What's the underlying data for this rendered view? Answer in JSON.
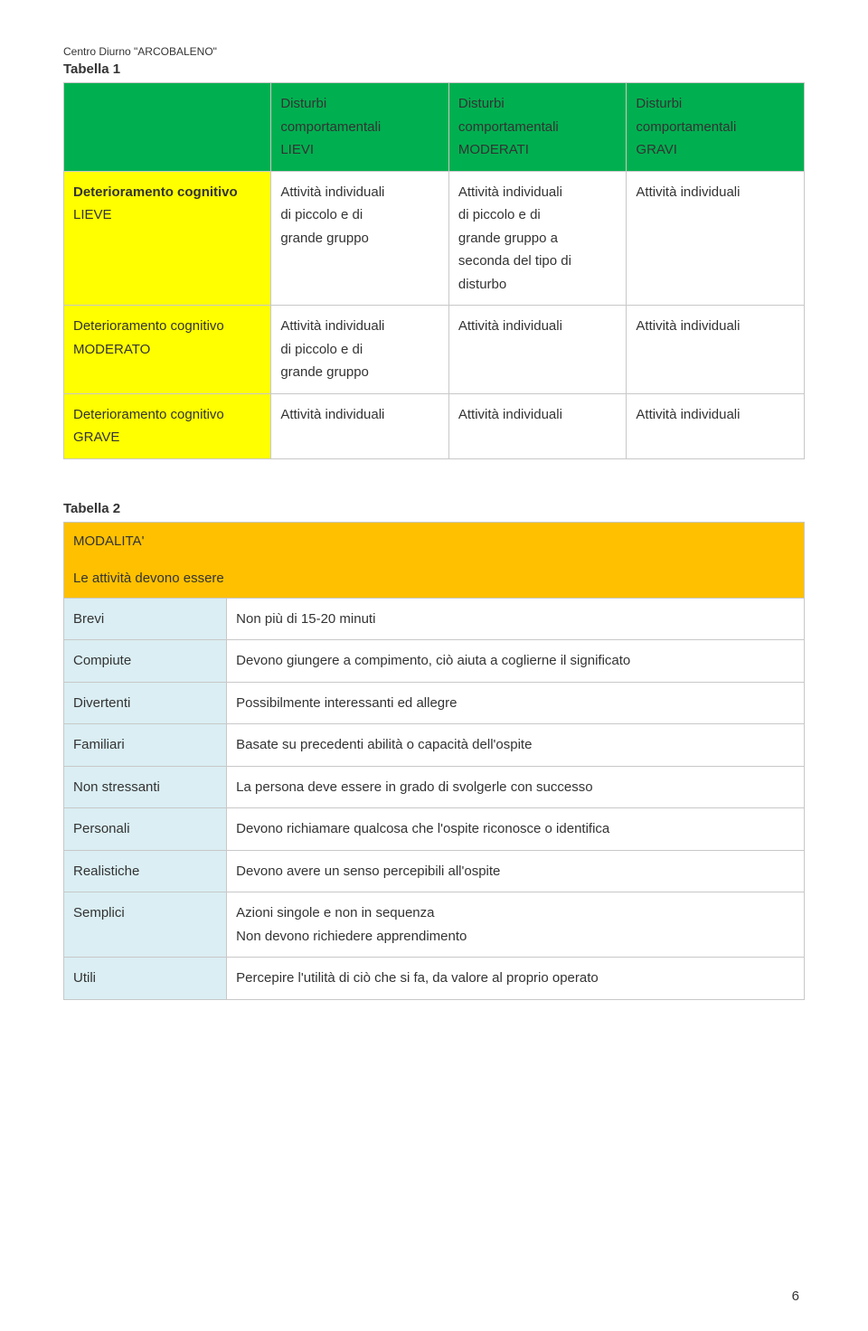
{
  "header_note": "Centro Diurno \"ARCOBALENO\"",
  "page_number": "6",
  "colors": {
    "green": "#00b050",
    "yellow": "#ffff00",
    "orange": "#ffc000",
    "lightblue": "#daeef3",
    "border": "#c8c8c8",
    "text": "#333333",
    "bg": "#ffffff"
  },
  "table1": {
    "title": "Tabella 1",
    "col_widths": [
      "28%",
      "24%",
      "24%",
      "24%"
    ],
    "header": {
      "bg": "#00b050",
      "cells": [
        "",
        "Disturbi\ncomportamentali\nLIEVI",
        "Disturbi\ncomportamentali\nMODERATI",
        "Disturbi\ncomportamentali\nGRAVI"
      ]
    },
    "rows": [
      {
        "label_bg": "#ffff00",
        "label_bold": "Deterioramento cognitivo",
        "label_plain": "LIEVE",
        "cells": [
          "Attività individuali\ndi piccolo e di\ngrande gruppo",
          "Attività individuali\ndi piccolo e di\ngrande gruppo a\nseconda del tipo di\ndisturbo",
          "Attività individuali"
        ]
      },
      {
        "label_bg": "#ffff00",
        "label_bold": "",
        "label_plain": "Deterioramento cognitivo\nMODERATO",
        "cells": [
          "Attività individuali\ndi piccolo e di\ngrande gruppo",
          "Attività individuali",
          "Attività individuali"
        ]
      },
      {
        "label_bg": "#ffff00",
        "label_bold": "",
        "label_plain": "Deterioramento cognitivo\nGRAVE",
        "cells": [
          "Attività individuali",
          "Attività individuali",
          "Attività individuali"
        ]
      }
    ]
  },
  "table2": {
    "title": "Tabella 2",
    "header_bg": "#ffc000",
    "header_line1": "MODALITA'",
    "header_line2": "Le attività devono essere",
    "col1_bg": "#daeef3",
    "rows": [
      {
        "k": "Brevi",
        "v": "Non più di 15-20 minuti"
      },
      {
        "k": "Compiute",
        "v": "Devono giungere a compimento, ciò aiuta a coglierne il significato"
      },
      {
        "k": "Divertenti",
        "v": "Possibilmente interessanti ed allegre"
      },
      {
        "k": "Familiari",
        "v": "Basate su precedenti abilità o capacità dell'ospite"
      },
      {
        "k": "Non stressanti",
        "v": "La persona deve essere in grado di svolgerle con successo"
      },
      {
        "k": "Personali",
        "v": "Devono richiamare qualcosa che l'ospite riconosce o identifica"
      },
      {
        "k": "Realistiche",
        "v": "Devono avere un senso percepibili all'ospite"
      },
      {
        "k": "Semplici",
        "v": "Azioni singole e non in sequenza\nNon devono richiedere apprendimento"
      },
      {
        "k": "Utili",
        "v": "Percepire l'utilità di ciò che si fa, da valore al proprio operato"
      }
    ]
  }
}
